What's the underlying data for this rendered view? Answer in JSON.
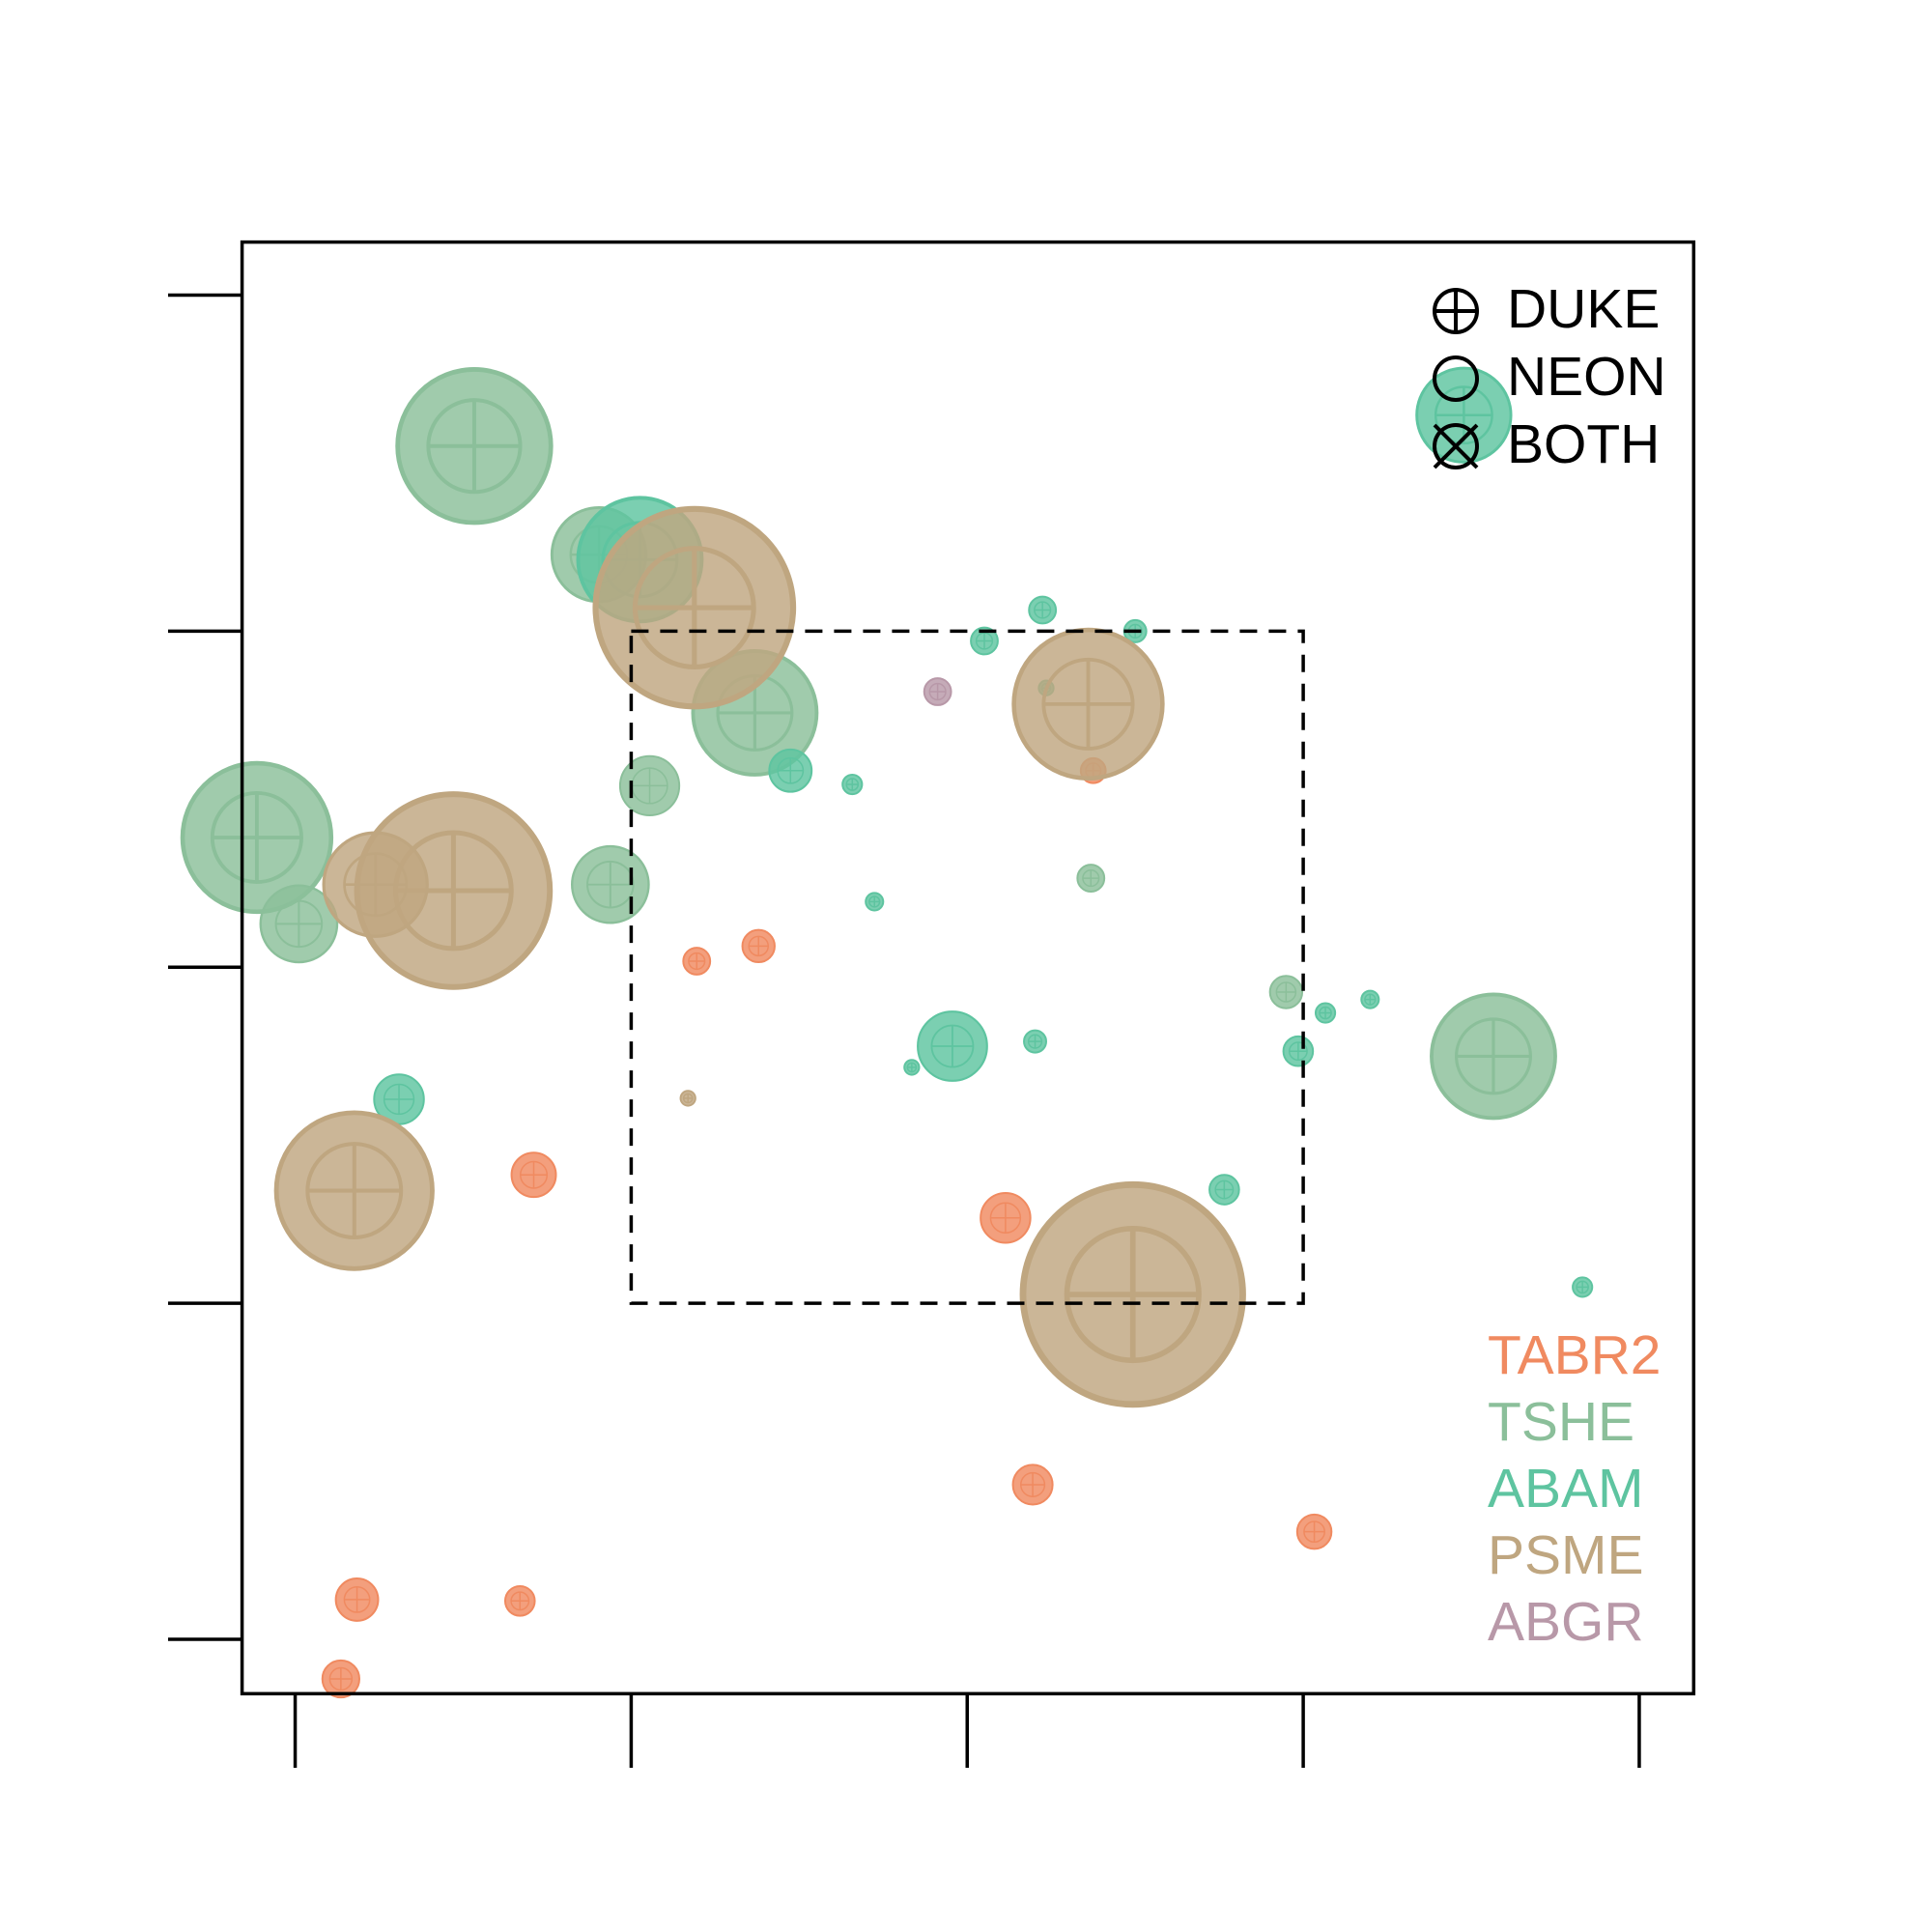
{
  "chart_data": {
    "type": "scatter",
    "xlim": [
      -1.58,
      41.62
    ],
    "ylim": [
      -1.62,
      41.58
    ],
    "xticks": [
      0,
      10,
      20,
      30,
      40
    ],
    "yticks": [
      0,
      10,
      20,
      30,
      40
    ],
    "highlight_box": {
      "x": [
        10,
        30
      ],
      "y": [
        10,
        30
      ]
    },
    "source_legend": [
      "DUKE",
      "NEON",
      "BOTH"
    ],
    "series": [
      {
        "name": "TABR2",
        "color": "#f08a60",
        "x": [
          23.75,
          11.95,
          13.79,
          7.1,
          21.14,
          21.95,
          30.33,
          1.84,
          6.69,
          1.36
        ],
        "values": [
          25.85,
          20.18,
          20.63,
          13.82,
          12.54,
          4.6,
          3.2,
          1.18,
          1.14,
          -1.18
        ],
        "sizes": [
          0.37,
          0.4,
          0.48,
          0.66,
          0.74,
          0.59,
          0.51,
          0.63,
          0.44,
          0.55
        ]
      },
      {
        "name": "TSHE",
        "color": "#8bbf9a",
        "x": [
          5.33,
          9.04,
          13.68,
          -1.14,
          0.11,
          9.38,
          10.55,
          23.68,
          35.66,
          29.49
        ],
        "values": [
          35.51,
          32.28,
          27.57,
          23.86,
          21.29,
          22.46,
          25.4,
          22.65,
          17.35,
          19.26
        ],
        "sizes": [
          2.28,
          1.4,
          1.84,
          2.21,
          1.14,
          1.14,
          0.88,
          0.4,
          1.84,
          0.48
        ]
      },
      {
        "name": "ABAM",
        "color": "#5ec4a0",
        "x": [
          10.26,
          34.78,
          14.74,
          16.58,
          20.51,
          22.24,
          25.0,
          17.24,
          19.56,
          18.35,
          22.02,
          29.85,
          30.66,
          31.99,
          27.65,
          38.31,
          3.09,
          22.35
        ],
        "values": [
          32.13,
          36.43,
          25.85,
          25.44,
          29.71,
          30.63,
          30.0,
          21.95,
          17.65,
          17.02,
          17.79,
          17.5,
          18.64,
          19.04,
          13.38,
          10.48,
          16.07,
          28.31
        ],
        "sizes": [
          1.84,
          1.4,
          0.63,
          0.29,
          0.4,
          0.4,
          0.33,
          0.26,
          1.03,
          0.22,
          0.33,
          0.44,
          0.29,
          0.26,
          0.44,
          0.29,
          0.74,
          0.22
        ]
      },
      {
        "name": "PSME",
        "color": "#bfa680",
        "x": [
          11.88,
          23.6,
          4.71,
          2.39,
          1.76,
          24.93,
          11.69
        ],
        "values": [
          30.7,
          27.83,
          22.28,
          22.46,
          13.35,
          10.26,
          16.1
        ],
        "sizes": [
          2.94,
          2.21,
          2.87,
          1.54,
          2.32,
          3.27,
          0.22
        ]
      },
      {
        "name": "ABGR",
        "color": "#b898a8",
        "x": [
          19.12
        ],
        "values": [
          28.2
        ],
        "sizes": [
          0.4
        ]
      }
    ]
  }
}
